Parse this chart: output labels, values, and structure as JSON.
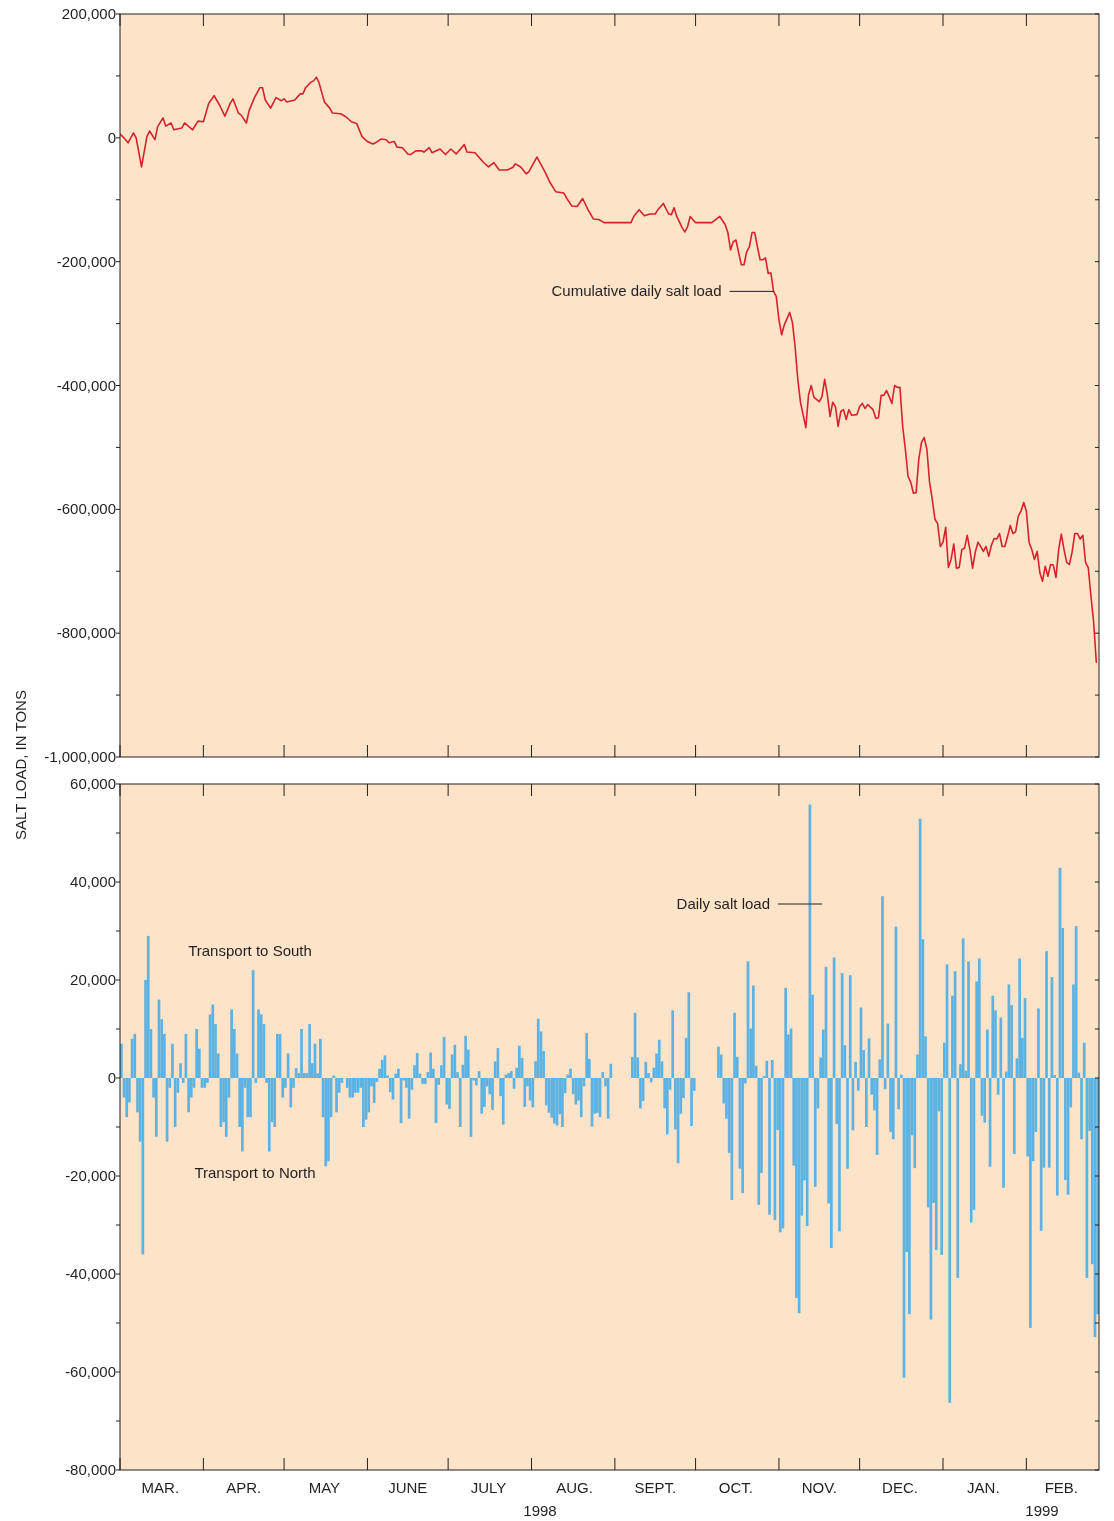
{
  "chart_data": [
    {
      "type": "line",
      "color": "#d7222b",
      "tick_labels": "y",
      "ylabel": "SALT LOAD, IN TONS",
      "xlim": [
        "1998-03-01",
        "1999-02-28"
      ],
      "xticks": [
        {
          "value": "1998-03-01",
          "label": null
        },
        {
          "value": "1998-04-01",
          "label": null
        },
        {
          "value": "1998-05-01",
          "label": null
        },
        {
          "value": "1998-06-01",
          "label": null
        },
        {
          "value": "1998-07-01",
          "label": null
        },
        {
          "value": "1998-08-01",
          "label": null
        },
        {
          "value": "1998-09-01",
          "label": null
        },
        {
          "value": "1998-10-01",
          "label": null
        },
        {
          "value": "1998-11-01",
          "label": null
        },
        {
          "value": "1998-12-01",
          "label": null
        },
        {
          "value": "1999-01-01",
          "label": null
        },
        {
          "value": "1999-02-01",
          "label": null
        }
      ],
      "ylim": [
        -1000000,
        200000
      ],
      "yticks": [
        {
          "value": 200000,
          "label": "200,000"
        },
        {
          "value": 100000,
          "label": null
        },
        0,
        {
          "value": -100000,
          "label": null
        },
        {
          "value": -200000,
          "label": "-200,000"
        },
        {
          "value": -300000,
          "label": null
        },
        {
          "value": -400000,
          "label": "-400,000"
        },
        {
          "value": -500000,
          "label": null
        },
        {
          "value": -600000,
          "label": "-600,000"
        },
        {
          "value": -700000,
          "label": null
        },
        {
          "value": -800000,
          "label": "-800,000"
        },
        {
          "value": -900000,
          "label": null
        },
        {
          "value": -1000000,
          "label": "-1,000,000"
        }
      ],
      "annotations": [
        {
          "text": "Cumulative daily salt load",
          "x": "1998-10-30",
          "y": -248000
        }
      ],
      "x": [
        "1998-03-01",
        "1998-03-02",
        "1998-03-04",
        "1998-03-06",
        "1998-03-07",
        "1998-03-09",
        "1998-03-11",
        "1998-03-12",
        "1998-03-14",
        "1998-03-15",
        "1998-03-17",
        "1998-03-18",
        "1998-03-20",
        "1998-03-21",
        "1998-03-24",
        "1998-03-25",
        "1998-03-28",
        "1998-03-30",
        "1998-04-01",
        "1998-04-03",
        "1998-04-05",
        "1998-04-07",
        "1998-04-09",
        "1998-04-11",
        "1998-04-12",
        "1998-04-14",
        "1998-04-15",
        "1998-04-17",
        "1998-04-18",
        "1998-04-20",
        "1998-04-22",
        "1998-04-23",
        "1998-04-24",
        "1998-04-26",
        "1998-04-28",
        "1998-04-30",
        "1998-05-01",
        "1998-05-02",
        "1998-05-05",
        "1998-05-07",
        "1998-05-08",
        "1998-05-09",
        "1998-05-11",
        "1998-05-12",
        "1998-05-13",
        "1998-05-14",
        "1998-05-16",
        "1998-05-18",
        "1998-05-19",
        "1998-05-22",
        "1998-05-24",
        "1998-05-26",
        "1998-05-28",
        "1998-05-30",
        "1998-06-01",
        "1998-06-03",
        "1998-06-04",
        "1998-06-06",
        "1998-06-08",
        "1998-06-09",
        "1998-06-11",
        "1998-06-12",
        "1998-06-14",
        "1998-06-16",
        "1998-06-17",
        "1998-06-19",
        "1998-06-21",
        "1998-06-22",
        "1998-06-24",
        "1998-06-25",
        "1998-06-28",
        "1998-06-30",
        "1998-07-02",
        "1998-07-04",
        "1998-07-07",
        "1998-07-08",
        "1998-07-11",
        "1998-07-13",
        "1998-07-14",
        "1998-07-16",
        "1998-07-18",
        "1998-07-20",
        "1998-07-23",
        "1998-07-25",
        "1998-07-26",
        "1998-07-28",
        "1998-07-30",
        "1998-07-31",
        "1998-08-03",
        "1998-08-04",
        "1998-08-06",
        "1998-08-08",
        "1998-08-10",
        "1998-08-13",
        "1998-08-14",
        "1998-08-16",
        "1998-08-18",
        "1998-08-20",
        "1998-08-22",
        "1998-08-24",
        "1998-08-26",
        "1998-08-28",
        "1998-09-07",
        "1998-09-08",
        "1998-09-10",
        "1998-09-12",
        "1998-09-14",
        "1998-09-16",
        "1998-09-17",
        "1998-09-19",
        "1998-09-21",
        "1998-09-22",
        "1998-09-23",
        "1998-09-24",
        "1998-09-26",
        "1998-09-27",
        "1998-09-28",
        "1998-09-29",
        "1998-10-01",
        "1998-10-07",
        "1998-10-10",
        "1998-10-12",
        "1998-10-13",
        "1998-10-14",
        "1998-10-15",
        "1998-10-16",
        "1998-10-17",
        "1998-10-18",
        "1998-10-19",
        "1998-10-20",
        "1998-10-21",
        "1998-10-22",
        "1998-10-23",
        "1998-10-24",
        "1998-10-25",
        "1998-10-26",
        "1998-10-27",
        "1998-10-28",
        "1998-10-29",
        "1998-10-30",
        "1998-10-31",
        "1998-11-01",
        "1998-11-02",
        "1998-11-03",
        "1998-11-05",
        "1998-11-06",
        "1998-11-07",
        "1998-11-08",
        "1998-11-09",
        "1998-11-11",
        "1998-11-12",
        "1998-11-13",
        "1998-11-14",
        "1998-11-16",
        "1998-11-17",
        "1998-11-18",
        "1998-11-19",
        "1998-11-20",
        "1998-11-21",
        "1998-11-22",
        "1998-11-23",
        "1998-11-24",
        "1998-11-25",
        "1998-11-26",
        "1998-11-27",
        "1998-11-28",
        "1998-11-30",
        "1998-12-01",
        "1998-12-02",
        "1998-12-03",
        "1998-12-04",
        "1998-12-06",
        "1998-12-07",
        "1998-12-08",
        "1998-12-09",
        "1998-12-10",
        "1998-12-11",
        "1998-12-12",
        "1998-12-13",
        "1998-12-14",
        "1998-12-15",
        "1998-12-16",
        "1998-12-17",
        "1998-12-18",
        "1998-12-19",
        "1998-12-20",
        "1998-12-21",
        "1998-12-22",
        "1998-12-23",
        "1998-12-24",
        "1998-12-25",
        "1998-12-26",
        "1998-12-27",
        "1998-12-28",
        "1998-12-29",
        "1998-12-30",
        "1998-12-31",
        "1999-01-01",
        "1999-01-02",
        "1999-01-03",
        "1999-01-04",
        "1999-01-05",
        "1999-01-06",
        "1999-01-07",
        "1999-01-08",
        "1999-01-09",
        "1999-01-10",
        "1999-01-11",
        "1999-01-12",
        "1999-01-13",
        "1999-01-14",
        "1999-01-15",
        "1999-01-16",
        "1999-01-17",
        "1999-01-18",
        "1999-01-19",
        "1999-01-20",
        "1999-01-21",
        "1999-01-22",
        "1999-01-23",
        "1999-01-24",
        "1999-01-25",
        "1999-01-26",
        "1999-01-27",
        "1999-01-28",
        "1999-01-29",
        "1999-01-30",
        "1999-01-31",
        "1999-02-01",
        "1999-02-02",
        "1999-02-03",
        "1999-02-04",
        "1999-02-05",
        "1999-02-06",
        "1999-02-07",
        "1999-02-08",
        "1999-02-09",
        "1999-02-10",
        "1999-02-11",
        "1999-02-12",
        "1999-02-13",
        "1999-02-14",
        "1999-02-15",
        "1999-02-16",
        "1999-02-17",
        "1999-02-18",
        "1999-02-19",
        "1999-02-20",
        "1999-02-21",
        "1999-02-22",
        "1999-02-23",
        "1999-02-24",
        "1999-02-25",
        "1999-02-26",
        "1999-02-27"
      ],
      "values": [
        6000,
        2000,
        -8000,
        8000,
        0,
        -47000,
        2000,
        11000,
        -3000,
        18000,
        32000,
        19000,
        24000,
        13000,
        16000,
        24000,
        13000,
        27000,
        26000,
        56000,
        68000,
        53000,
        35000,
        56000,
        63000,
        40000,
        37000,
        24000,
        44000,
        65000,
        81000,
        81000,
        61000,
        48000,
        65000,
        60000,
        63000,
        58000,
        61000,
        71000,
        71000,
        81000,
        90000,
        92000,
        98000,
        89000,
        58000,
        48000,
        40000,
        39000,
        34000,
        26000,
        23000,
        2000,
        -6000,
        -10000,
        -8000,
        -2000,
        -3000,
        -8000,
        -6000,
        -15000,
        -16000,
        -26000,
        -27000,
        -21000,
        -21000,
        -23000,
        -16000,
        -24000,
        -18000,
        -27000,
        -18000,
        -26000,
        -11000,
        -23000,
        -24000,
        -34000,
        -39000,
        -47000,
        -40000,
        -52000,
        -52000,
        -48000,
        -42000,
        -47000,
        -58000,
        -55000,
        -31000,
        -39000,
        -55000,
        -73000,
        -87000,
        -89000,
        -97000,
        -110000,
        -111000,
        -98000,
        -116000,
        -131000,
        -132000,
        -137000,
        -137000,
        -127000,
        -116000,
        -126000,
        -123000,
        -123000,
        -116000,
        -106000,
        -123000,
        -124000,
        -113000,
        -127000,
        -145000,
        -152000,
        -144000,
        -127000,
        -137000,
        -137000,
        -127000,
        -140000,
        -153000,
        -181000,
        -168000,
        -165000,
        -185000,
        -205000,
        -205000,
        -184000,
        -176000,
        -153000,
        -153000,
        -176000,
        -197000,
        -197000,
        -194000,
        -219000,
        -218000,
        -248000,
        -256000,
        -294000,
        -318000,
        -302000,
        -282000,
        -298000,
        -337000,
        -390000,
        -427000,
        -468000,
        -415000,
        -400000,
        -419000,
        -426000,
        -418000,
        -390000,
        -415000,
        -450000,
        -427000,
        -434000,
        -466000,
        -442000,
        -439000,
        -455000,
        -439000,
        -448000,
        -447000,
        -434000,
        -429000,
        -437000,
        -431000,
        -439000,
        -453000,
        -452000,
        -416000,
        -416000,
        -408000,
        -418000,
        -429000,
        -400000,
        -403000,
        -403000,
        -466000,
        -503000,
        -547000,
        -556000,
        -574000,
        -573000,
        -519000,
        -492000,
        -484000,
        -503000,
        -556000,
        -584000,
        -616000,
        -623000,
        -660000,
        -653000,
        -629000,
        -694000,
        -681000,
        -656000,
        -695000,
        -694000,
        -665000,
        -663000,
        -642000,
        -665000,
        -695000,
        -669000,
        -653000,
        -660000,
        -668000,
        -660000,
        -676000,
        -658000,
        -647000,
        -648000,
        -639000,
        -660000,
        -660000,
        -644000,
        -626000,
        -639000,
        -636000,
        -611000,
        -603000,
        -589000,
        -603000,
        -653000,
        -665000,
        -681000,
        -668000,
        -702000,
        -716000,
        -692000,
        -708000,
        -689000,
        -690000,
        -710000,
        -665000,
        -640000,
        -665000,
        -686000,
        -689000,
        -669000,
        -639000,
        -639000,
        -648000,
        -642000,
        -686000,
        -694000,
        -740000,
        -782000,
        -847000
      ]
    },
    {
      "type": "bar",
      "color": "#5cb3e3",
      "xlim": [
        "1998-03-01",
        "1999-02-28"
      ],
      "xticks": [
        {
          "value": "1998-03-01",
          "label": null
        },
        {
          "value": "1998-03-16",
          "label": "MAR."
        },
        {
          "value": "1998-04-01",
          "label": null
        },
        {
          "value": "1998-04-16",
          "label": "APR."
        },
        {
          "value": "1998-05-01",
          "label": null
        },
        {
          "value": "1998-05-16",
          "label": "MAY"
        },
        {
          "value": "1998-06-01",
          "label": null
        },
        {
          "value": "1998-06-16",
          "label": "JUNE"
        },
        {
          "value": "1998-07-01",
          "label": null
        },
        {
          "value": "1998-07-16",
          "label": "JULY"
        },
        {
          "value": "1998-08-01",
          "label": null
        },
        {
          "value": "1998-08-17",
          "label": "AUG."
        },
        {
          "value": "1998-09-01",
          "label": null
        },
        {
          "value": "1998-09-16",
          "label": "SEPT."
        },
        {
          "value": "1998-10-01",
          "label": null
        },
        {
          "value": "1998-10-16",
          "label": "OCT."
        },
        {
          "value": "1998-11-01",
          "label": null
        },
        {
          "value": "1998-11-16",
          "label": "NOV."
        },
        {
          "value": "1998-12-01",
          "label": null
        },
        {
          "value": "1998-12-16",
          "label": "DEC."
        },
        {
          "value": "1999-01-01",
          "label": null
        },
        {
          "value": "1999-01-16",
          "label": "JAN."
        },
        {
          "value": "1999-02-01",
          "label": null
        },
        {
          "value": "1999-02-14",
          "label": "FEB."
        }
      ],
      "ylim": [
        -80000,
        60000
      ],
      "yticks": [
        {
          "value": 60000,
          "label": "60,000"
        },
        {
          "value": 50000,
          "label": null
        },
        {
          "value": 40000,
          "label": "40,000"
        },
        {
          "value": 30000,
          "label": null
        },
        {
          "value": 20000,
          "label": "20,000"
        },
        {
          "value": 10000,
          "label": null
        },
        0,
        {
          "value": -10000,
          "label": null
        },
        {
          "value": -20000,
          "label": "-20,000"
        },
        {
          "value": -30000,
          "label": null
        },
        {
          "value": -40000,
          "label": "-40,000"
        },
        {
          "value": -50000,
          "label": null
        },
        {
          "value": -60000,
          "label": "-60,000"
        },
        {
          "value": -70000,
          "label": null
        },
        {
          "value": -80000,
          "label": "-80,000"
        }
      ],
      "annotations": [
        "Daily salt load",
        "Transport to South",
        "Transport to North",
        "1998",
        "1999"
      ],
      "x": [
        "1998-03-01",
        "1998-03-02",
        "1998-03-03",
        "1998-03-04",
        "1998-03-05",
        "1998-03-06",
        "1998-03-07",
        "1998-03-08",
        "1998-03-09",
        "1998-03-10",
        "1998-03-11",
        "1998-03-12",
        "1998-03-13",
        "1998-03-14",
        "1998-03-15",
        "1998-03-16",
        "1998-03-17",
        "1998-03-18",
        "1998-03-19",
        "1998-03-20",
        "1998-03-21",
        "1998-03-22",
        "1998-03-23",
        "1998-03-24",
        "1998-03-25",
        "1998-03-26",
        "1998-03-27",
        "1998-03-28",
        "1998-03-29",
        "1998-03-30",
        "1998-03-31",
        "1998-04-01",
        "1998-04-02",
        "1998-04-03",
        "1998-04-04",
        "1998-04-05",
        "1998-04-06",
        "1998-04-07",
        "1998-04-08",
        "1998-04-09",
        "1998-04-10",
        "1998-04-11",
        "1998-04-12",
        "1998-04-13",
        "1998-04-14",
        "1998-04-15",
        "1998-04-16",
        "1998-04-17",
        "1998-04-18",
        "1998-04-19",
        "1998-04-20",
        "1998-04-21",
        "1998-04-22",
        "1998-04-23",
        "1998-04-24",
        "1998-04-25",
        "1998-04-26",
        "1998-04-27",
        "1998-04-28",
        "1998-04-29",
        "1998-04-30",
        "1998-05-01",
        "1998-05-02",
        "1998-05-03",
        "1998-05-04",
        "1998-05-05",
        "1998-05-06",
        "1998-05-07",
        "1998-05-08",
        "1998-05-09",
        "1998-05-10",
        "1998-05-11",
        "1998-05-12",
        "1998-05-13",
        "1998-05-14",
        "1998-05-15",
        "1998-05-16",
        "1998-05-17",
        "1998-05-18",
        "1998-05-19",
        "1998-05-20",
        "1998-05-21",
        "1998-05-22",
        "1998-05-23",
        "1998-05-24",
        "1998-05-25",
        "1998-05-26",
        "1998-05-27",
        "1998-05-28",
        "1998-05-29",
        "1998-05-30",
        "1998-05-31",
        "1998-06-01",
        "1998-06-02",
        "1998-06-03",
        "1998-06-04",
        "1998-06-05",
        "1998-06-06",
        "1998-06-07",
        "1998-06-08",
        "1998-06-09",
        "1998-06-10",
        "1998-06-11",
        "1998-06-12",
        "1998-06-13",
        "1998-06-14",
        "1998-06-15",
        "1998-06-16",
        "1998-06-17",
        "1998-06-18",
        "1998-06-19",
        "1998-06-20",
        "1998-06-21",
        "1998-06-22",
        "1998-06-23",
        "1998-06-24",
        "1998-06-25",
        "1998-06-26",
        "1998-06-27",
        "1998-06-28",
        "1998-06-29",
        "1998-06-30",
        "1998-07-01",
        "1998-07-02",
        "1998-07-03",
        "1998-07-04",
        "1998-07-05",
        "1998-07-06",
        "1998-07-07",
        "1998-07-08",
        "1998-07-09",
        "1998-07-10",
        "1998-07-11",
        "1998-07-12",
        "1998-07-13",
        "1998-07-14",
        "1998-07-15",
        "1998-07-16",
        "1998-07-17",
        "1998-07-18",
        "1998-07-19",
        "1998-07-20",
        "1998-07-21",
        "1998-07-22",
        "1998-07-23",
        "1998-07-24",
        "1998-07-25",
        "1998-07-26",
        "1998-07-27",
        "1998-07-28",
        "1998-07-29",
        "1998-07-30",
        "1998-07-31",
        "1998-08-01",
        "1998-08-02",
        "1998-08-03",
        "1998-08-04",
        "1998-08-05",
        "1998-08-06",
        "1998-08-07",
        "1998-08-08",
        "1998-08-09",
        "1998-08-10",
        "1998-08-11",
        "1998-08-12",
        "1998-08-13",
        "1998-08-14",
        "1998-08-15",
        "1998-08-16",
        "1998-08-17",
        "1998-08-18",
        "1998-08-19",
        "1998-08-20",
        "1998-08-21",
        "1998-08-22",
        "1998-08-23",
        "1998-08-24",
        "1998-08-25",
        "1998-08-26",
        "1998-08-27",
        "1998-08-28",
        "1998-08-29",
        "1998-08-30",
        "1998-08-31",
        "1998-09-01",
        "1998-09-02",
        "1998-09-03",
        "1998-09-04",
        "1998-09-05",
        "1998-09-06",
        "1998-09-07",
        "1998-09-08",
        "1998-09-09",
        "1998-09-10",
        "1998-09-11",
        "1998-09-12",
        "1998-09-13",
        "1998-09-14",
        "1998-09-15",
        "1998-09-16",
        "1998-09-17",
        "1998-09-18",
        "1998-09-19",
        "1998-09-20",
        "1998-09-21",
        "1998-09-22",
        "1998-09-23",
        "1998-09-24",
        "1998-09-25",
        "1998-09-26",
        "1998-09-27",
        "1998-09-28",
        "1998-09-29",
        "1998-09-30",
        "1998-10-01",
        "1998-10-02",
        "1998-10-03",
        "1998-10-04",
        "1998-10-05",
        "1998-10-06",
        "1998-10-07",
        "1998-10-08",
        "1998-10-09",
        "1998-10-10",
        "1998-10-11",
        "1998-10-12",
        "1998-10-13",
        "1998-10-14",
        "1998-10-15",
        "1998-10-16",
        "1998-10-17",
        "1998-10-18",
        "1998-10-19",
        "1998-10-20",
        "1998-10-21",
        "1998-10-22",
        "1998-10-23",
        "1998-10-24",
        "1998-10-25",
        "1998-10-26",
        "1998-10-27",
        "1998-10-28",
        "1998-10-29",
        "1998-10-30",
        "1998-10-31",
        "1998-11-01",
        "1998-11-02",
        "1998-11-03",
        "1998-11-04",
        "1998-11-05",
        "1998-11-06",
        "1998-11-07",
        "1998-11-08",
        "1998-11-09",
        "1998-11-10",
        "1998-11-11",
        "1998-11-12",
        "1998-11-13",
        "1998-11-14",
        "1998-11-15",
        "1998-11-16",
        "1998-11-17",
        "1998-11-18",
        "1998-11-19",
        "1998-11-20",
        "1998-11-21",
        "1998-11-22",
        "1998-11-23",
        "1998-11-24",
        "1998-11-25",
        "1998-11-26",
        "1998-11-27",
        "1998-11-28",
        "1998-11-29",
        "1998-11-30",
        "1998-12-01",
        "1998-12-02",
        "1998-12-03",
        "1998-12-04",
        "1998-12-05",
        "1998-12-06",
        "1998-12-07",
        "1998-12-08",
        "1998-12-09",
        "1998-12-10",
        "1998-12-11",
        "1998-12-12",
        "1998-12-13",
        "1998-12-14",
        "1998-12-15",
        "1998-12-16",
        "1998-12-17",
        "1998-12-18",
        "1998-12-19",
        "1998-12-20",
        "1998-12-21",
        "1998-12-22",
        "1998-12-23",
        "1998-12-24",
        "1998-12-25",
        "1998-12-26",
        "1998-12-27",
        "1998-12-28",
        "1998-12-29",
        "1998-12-30",
        "1998-12-31",
        "1999-01-01",
        "1999-01-02",
        "1999-01-03",
        "1999-01-04",
        "1999-01-05",
        "1999-01-06",
        "1999-01-07",
        "1999-01-08",
        "1999-01-09",
        "1999-01-10",
        "1999-01-11",
        "1999-01-12",
        "1999-01-13",
        "1999-01-14",
        "1999-01-15",
        "1999-01-16",
        "1999-01-17",
        "1999-01-18",
        "1999-01-19",
        "1999-01-20",
        "1999-01-21",
        "1999-01-22",
        "1999-01-23",
        "1999-01-24",
        "1999-01-25",
        "1999-01-26",
        "1999-01-27",
        "1999-01-28",
        "1999-01-29",
        "1999-01-30",
        "1999-01-31",
        "1999-02-01",
        "1999-02-02",
        "1999-02-03",
        "1999-02-04",
        "1999-02-05",
        "1999-02-06",
        "1999-02-07",
        "1999-02-08",
        "1999-02-09",
        "1999-02-10",
        "1999-02-11",
        "1999-02-12",
        "1999-02-13",
        "1999-02-14",
        "1999-02-15",
        "1999-02-16",
        "1999-02-17",
        "1999-02-18",
        "1999-02-19",
        "1999-02-20",
        "1999-02-21",
        "1999-02-22",
        "1999-02-23",
        "1999-02-24",
        "1999-02-25",
        "1999-02-26",
        "1999-02-27"
      ],
      "values": [
        7000,
        -4000,
        -8000,
        -5000,
        8000,
        9000,
        -7000,
        -13000,
        -36000,
        20000,
        29000,
        10000,
        -4000,
        -12000,
        16000,
        12000,
        9000,
        -13000,
        -2000,
        7000,
        -10000,
        -3000,
        3000,
        -1000,
        9000,
        -7000,
        -4000,
        -2000,
        10000,
        6000,
        -2000,
        -2000,
        -1000,
        13000,
        15000,
        11000,
        5000,
        -10000,
        -9000,
        -12000,
        -4000,
        14000,
        10000,
        5000,
        -10000,
        -15000,
        -2000,
        -8000,
        -8000,
        22000,
        -1000,
        14000,
        13000,
        11000,
        -1000,
        -15000,
        -9000,
        -10000,
        9000,
        9000,
        -4000,
        -2000,
        5000,
        -6000,
        -2000,
        2000,
        1000,
        10000,
        1000,
        1000,
        11000,
        3000,
        7000,
        1000,
        8000,
        -8000,
        -18000,
        -17000,
        -8000,
        500,
        -7000,
        -3000,
        -1000,
        0,
        -2000,
        -4000,
        -4000,
        -3000,
        -3000,
        -2000,
        -10000,
        -8500,
        -7000,
        -1700,
        -5100,
        -800,
        1900,
        3700,
        4600,
        500,
        -2900,
        -4400,
        900,
        1900,
        -9200,
        -500,
        -2000,
        -8300,
        -2400,
        2600,
        5100,
        900,
        -1200,
        -1200,
        1200,
        5200,
        1900,
        -9200,
        -1400,
        2600,
        8400,
        -5400,
        -6300,
        4800,
        6800,
        1200,
        -10000,
        2700,
        8600,
        5800,
        -12000,
        -500,
        -1500,
        1400,
        -7300,
        -5900,
        -1700,
        -3300,
        -6500,
        3400,
        6100,
        -3700,
        -9500,
        700,
        1000,
        1400,
        -2200,
        2100,
        6600,
        4100,
        -5900,
        -1700,
        -4600,
        -6000,
        3400,
        12100,
        9500,
        5500,
        -5600,
        -7100,
        -8100,
        -9300,
        -9700,
        -7400,
        -10000,
        -3100,
        700,
        1900,
        -3300,
        -5400,
        -4600,
        -8000,
        -1700,
        9200,
        3900,
        -9900,
        -7300,
        -7100,
        -8000,
        1200,
        -1700,
        -8300,
        2900,
        null,
        null,
        null,
        null,
        null,
        null,
        null,
        4300,
        13300,
        4200,
        -6200,
        -4700,
        3300,
        1000,
        -900,
        2100,
        5000,
        7800,
        3400,
        -6200,
        -11500,
        -2400,
        13800,
        -10500,
        -17400,
        -7300,
        -4100,
        8200,
        17500,
        -9800,
        -2600,
        null,
        null,
        null,
        null,
        null,
        null,
        null,
        null,
        6400,
        4800,
        -5200,
        -8300,
        -15300,
        -24900,
        13300,
        4300,
        -18500,
        -23500,
        -1100,
        23800,
        10100,
        18900,
        2500,
        -25900,
        -19400,
        400,
        3500,
        -27900,
        3700,
        -29000,
        -10600,
        -31500,
        -30700,
        18400,
        8900,
        10100,
        -17900,
        -44900,
        -48000,
        -28100,
        -20900,
        -30200,
        55800,
        17000,
        -22200,
        -6200,
        4200,
        9900,
        22700,
        -25600,
        -34700,
        24600,
        -9400,
        -31300,
        21400,
        6700,
        -18500,
        21000,
        -10700,
        3300,
        -2600,
        14400,
        5700,
        -10000,
        8100,
        -3400,
        -6600,
        -15700,
        3800,
        37100,
        -2300,
        11100,
        -11000,
        -12500,
        30900,
        -6400,
        700,
        -61200,
        -35500,
        -48200,
        -11700,
        -18400,
        4800,
        52900,
        28300,
        8500,
        -26400,
        -49300,
        -25500,
        -35100,
        -6800,
        -36100,
        7200,
        23200,
        -66300,
        16800,
        21800,
        -40800,
        2800,
        28500,
        1500,
        23800,
        -29500,
        -26900,
        19700,
        24400,
        -7700,
        -9100,
        9900,
        -18100,
        16800,
        13800,
        -3400,
        12300,
        -22400,
        1300,
        19100,
        14900,
        -15500,
        4000,
        24400,
        8200,
        16300,
        -16000,
        -51000,
        -17000,
        -11000,
        14200,
        -31200,
        -18300,
        25900,
        -18300,
        20600,
        600,
        -24000,
        42900,
        30600,
        -20800,
        -23800,
        -6000,
        19100,
        31000,
        1100,
        -12500,
        7200,
        -40800,
        -10800,
        -38000,
        -52900,
        -48200
      ]
    }
  ]
}
